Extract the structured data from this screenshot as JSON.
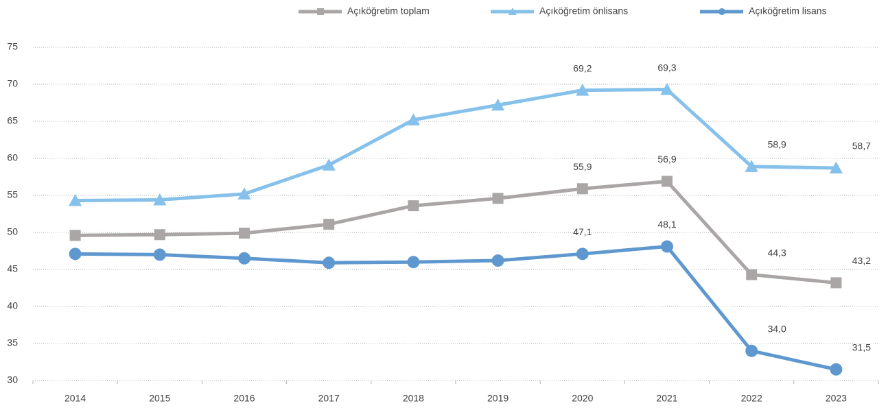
{
  "chart_data": {
    "type": "line",
    "categories": [
      "2014",
      "2015",
      "2016",
      "2017",
      "2018",
      "2019",
      "2020",
      "2021",
      "2022",
      "2023"
    ],
    "series": [
      {
        "name": "Açıköğretim toplam",
        "color": "#aaa6a6",
        "marker": "square",
        "values": [
          49.6,
          49.7,
          49.9,
          51.1,
          53.6,
          54.6,
          55.9,
          56.9,
          44.3,
          43.2
        ],
        "value_labels": [
          null,
          null,
          null,
          null,
          null,
          null,
          "55,9",
          "56,9",
          "44,3",
          "43,2"
        ]
      },
      {
        "name": "Açıköğretim önlisans",
        "color": "#85c1ea",
        "marker": "triangle",
        "values": [
          54.3,
          54.4,
          55.2,
          59.1,
          65.2,
          67.2,
          69.2,
          69.3,
          58.9,
          58.7
        ],
        "value_labels": [
          null,
          null,
          null,
          null,
          null,
          null,
          "69,2",
          "69,3",
          "58,9",
          "58,7"
        ]
      },
      {
        "name": "Açıköğretim lisans",
        "color": "#5f98cf",
        "marker": "circle",
        "values": [
          47.1,
          47.0,
          46.5,
          45.9,
          46.0,
          46.2,
          47.1,
          48.1,
          34.0,
          31.5
        ],
        "value_labels": [
          null,
          null,
          null,
          null,
          null,
          null,
          "47,1",
          "48,1",
          "34,0",
          "31,5"
        ]
      }
    ],
    "ylim": [
      30,
      75
    ],
    "yticks": [
      30,
      35,
      40,
      45,
      50,
      55,
      60,
      65,
      70,
      75
    ],
    "grid": true,
    "legend": "top"
  }
}
